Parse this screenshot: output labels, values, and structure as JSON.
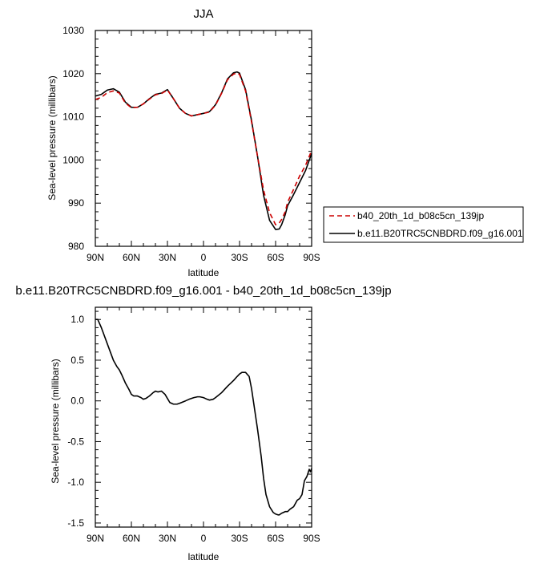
{
  "chart_data": [
    {
      "type": "line",
      "title": "JJA",
      "xlabel": "latitude",
      "ylabel": "Sea-level pressure (millibars)",
      "xlim": [
        -90,
        90
      ],
      "ylim": [
        980,
        1030
      ],
      "x_ticks": [
        -90,
        -60,
        -30,
        0,
        30,
        60,
        90
      ],
      "x_tick_labels": [
        "90N",
        "60N",
        "30N",
        "0",
        "30S",
        "60S",
        "90S"
      ],
      "y_ticks": [
        980,
        990,
        1000,
        1010,
        1020,
        1030
      ],
      "y_tick_labels": [
        "980",
        "990",
        "1000",
        "1010",
        "1020",
        "1030"
      ],
      "legend_position": "right",
      "series": [
        {
          "name": "b40_20th_1d_b08c5cn_139jp",
          "color": "#cc0000",
          "dash": "dashed",
          "x": [
            -90,
            -85,
            -80,
            -75,
            -70,
            -65,
            -60,
            -55,
            -50,
            -45,
            -40,
            -35,
            -30,
            -25,
            -20,
            -15,
            -10,
            -5,
            0,
            5,
            10,
            15,
            20,
            25,
            28,
            30,
            35,
            40,
            45,
            50,
            55,
            60,
            63,
            65,
            68,
            70,
            75,
            80,
            85,
            90
          ],
          "y": [
            1014.0,
            1014.5,
            1015.6,
            1016.0,
            1015.5,
            1013.2,
            1012.1,
            1012.2,
            1013.0,
            1014.1,
            1015.1,
            1015.4,
            1016.2,
            1014.2,
            1012.0,
            1010.8,
            1010.2,
            1010.5,
            1010.8,
            1011.1,
            1012.7,
            1015.4,
            1018.6,
            1019.9,
            1020.1,
            1019.8,
            1016.0,
            1008.8,
            1000.8,
            993.0,
            987.8,
            985.0,
            985.4,
            986.2,
            988.0,
            990.2,
            993.2,
            996.3,
            998.8,
            1002.2
          ]
        },
        {
          "name": "b.e11.B20TRC5CNBDRD.f09_g16.001",
          "color": "#000000",
          "dash": "solid",
          "x": [
            -90,
            -85,
            -80,
            -75,
            -70,
            -65,
            -60,
            -55,
            -50,
            -45,
            -40,
            -35,
            -30,
            -25,
            -20,
            -15,
            -10,
            -5,
            0,
            5,
            10,
            15,
            20,
            25,
            28,
            30,
            35,
            40,
            45,
            50,
            55,
            60,
            63,
            65,
            68,
            70,
            75,
            80,
            85,
            90
          ],
          "y": [
            1014.8,
            1015.2,
            1016.2,
            1016.5,
            1015.7,
            1013.4,
            1012.2,
            1012.2,
            1013.0,
            1014.2,
            1015.2,
            1015.5,
            1016.3,
            1014.2,
            1012.0,
            1010.8,
            1010.2,
            1010.5,
            1010.8,
            1011.2,
            1012.8,
            1015.5,
            1018.8,
            1020.2,
            1020.4,
            1020.1,
            1016.3,
            1009.1,
            1000.8,
            991.8,
            986.0,
            983.9,
            984.0,
            985.0,
            987.3,
            989.4,
            992.0,
            994.8,
            997.6,
            1001.5
          ]
        }
      ]
    },
    {
      "type": "line",
      "title": "b.e11.B20TRC5CNBDRD.f09_g16.001 - b40_20th_1d_b08c5cn_139jp",
      "xlabel": "latitude",
      "ylabel": "Sea-level pressure (millibars)",
      "xlim": [
        -90,
        90
      ],
      "ylim": [
        -1.55,
        1.15
      ],
      "x_ticks": [
        -90,
        -60,
        -30,
        0,
        30,
        60,
        90
      ],
      "x_tick_labels": [
        "90N",
        "60N",
        "30N",
        "0",
        "30S",
        "60S",
        "90S"
      ],
      "y_ticks": [
        -1.5,
        -1.0,
        -0.5,
        0.0,
        0.5,
        1.0
      ],
      "y_tick_labels": [
        "-1.5",
        "-1.0",
        "-0.5",
        "0.0",
        "0.5",
        "1.0"
      ],
      "series": [
        {
          "color": "#000000",
          "dash": "solid",
          "x": [
            -90,
            -88,
            -85,
            -80,
            -75,
            -72,
            -70,
            -68,
            -65,
            -62,
            -60,
            -58,
            -55,
            -52,
            -50,
            -48,
            -45,
            -42,
            -40,
            -38,
            -35,
            -32,
            -30,
            -28,
            -25,
            -22,
            -20,
            -15,
            -12,
            -10,
            -8,
            -5,
            -3,
            0,
            3,
            5,
            8,
            10,
            15,
            20,
            25,
            28,
            30,
            32,
            35,
            38,
            40,
            42,
            45,
            48,
            50,
            52,
            55,
            58,
            60,
            62,
            63,
            65,
            68,
            70,
            72,
            75,
            78,
            80,
            82,
            84,
            86,
            88,
            89,
            90
          ],
          "y": [
            1.0,
            1.0,
            0.9,
            0.7,
            0.5,
            0.42,
            0.38,
            0.32,
            0.22,
            0.14,
            0.08,
            0.06,
            0.06,
            0.04,
            0.02,
            0.03,
            0.06,
            0.1,
            0.12,
            0.11,
            0.12,
            0.08,
            0.03,
            -0.02,
            -0.04,
            -0.04,
            -0.03,
            0.0,
            0.02,
            0.03,
            0.04,
            0.05,
            0.05,
            0.04,
            0.02,
            0.01,
            0.02,
            0.04,
            0.1,
            0.18,
            0.25,
            0.3,
            0.33,
            0.35,
            0.35,
            0.3,
            0.15,
            -0.05,
            -0.35,
            -0.68,
            -0.95,
            -1.15,
            -1.3,
            -1.37,
            -1.39,
            -1.4,
            -1.4,
            -1.38,
            -1.36,
            -1.36,
            -1.33,
            -1.3,
            -1.22,
            -1.2,
            -1.15,
            -0.98,
            -0.93,
            -0.84,
            -0.87,
            -0.83
          ]
        }
      ]
    }
  ]
}
